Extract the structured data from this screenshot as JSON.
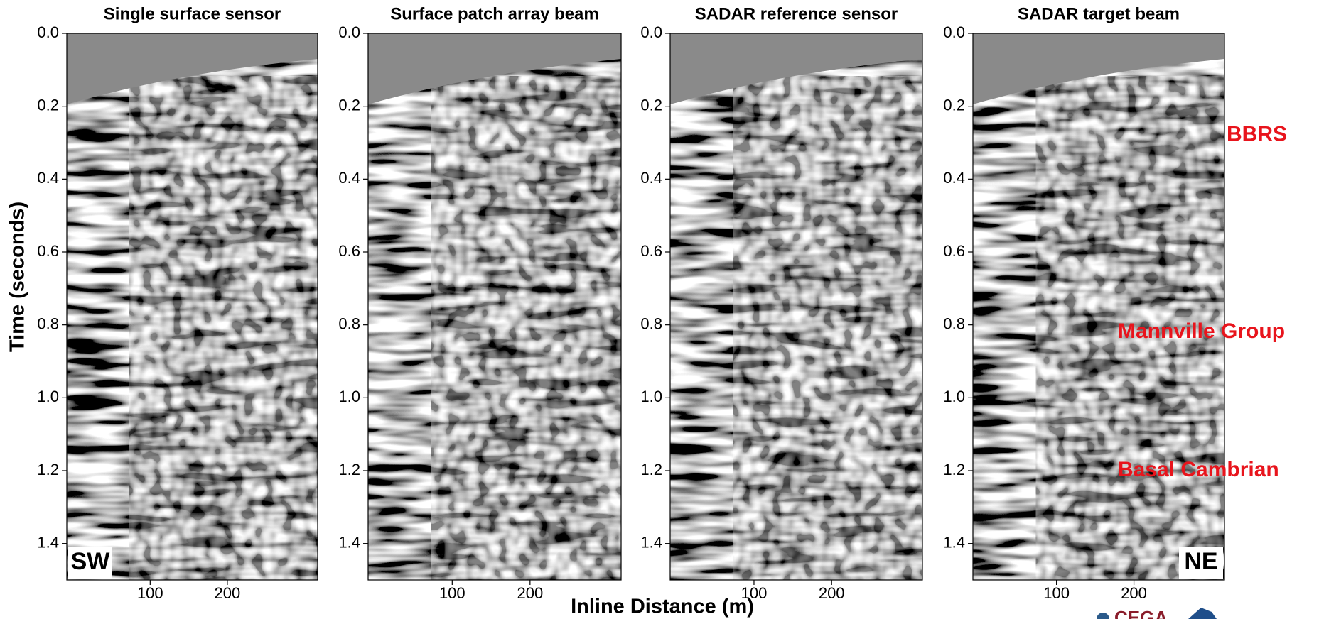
{
  "figure": {
    "ylabel": "Time (seconds)",
    "xlabel": "Inline Distance (m)"
  },
  "annotations": [
    {
      "text": "BBRS",
      "panel": 3,
      "y": 0.28
    },
    {
      "text": "Mannville Group",
      "panel": 3,
      "y": 0.82
    },
    {
      "text": "Basal Cambrian",
      "panel": 3,
      "y": 1.2
    }
  ],
  "corner_labels": [
    {
      "text": "SW",
      "panel": 0,
      "corner": "bottom-left"
    },
    {
      "text": "NE",
      "panel": 3,
      "corner": "bottom-right"
    }
  ],
  "logo": "CEGA",
  "chart_data": [
    {
      "type": "seismic",
      "title": "Single surface sensor",
      "xlim": [
        -8,
        317
      ],
      "xticks": [
        100,
        200
      ],
      "ylim": [
        0,
        1.5
      ],
      "y_inverted": true,
      "yticks": [
        {
          "value": 0,
          "label": "0.0"
        },
        0.2,
        0.4,
        0.6,
        0.8,
        {
          "value": 1,
          "label": "1.0"
        },
        1.2,
        1.4
      ]
    },
    {
      "type": "seismic",
      "title": "Surface patch array beam",
      "xlim": [
        -8,
        317
      ],
      "xticks": [
        100,
        200
      ],
      "ylim": [
        0,
        1.5
      ],
      "y_inverted": true,
      "yticks": [
        {
          "value": 0,
          "label": "0.0"
        },
        0.2,
        0.4,
        0.6,
        0.8,
        {
          "value": 1,
          "label": "1.0"
        },
        1.2,
        1.4
      ]
    },
    {
      "type": "seismic",
      "title": "SADAR reference sensor",
      "xlim": [
        -8,
        317
      ],
      "xticks": [
        100,
        200
      ],
      "ylim": [
        0,
        1.5
      ],
      "y_inverted": true,
      "yticks": [
        {
          "value": 0,
          "label": "0.0"
        },
        0.2,
        0.4,
        0.6,
        0.8,
        {
          "value": 1,
          "label": "1.0"
        },
        1.2,
        1.4
      ]
    },
    {
      "type": "seismic",
      "title": "SADAR target beam",
      "xlim": [
        -8,
        317
      ],
      "xticks": [
        100,
        200
      ],
      "ylim": [
        0,
        1.5
      ],
      "y_inverted": true,
      "yticks": [
        {
          "value": 0,
          "label": "0.0"
        },
        0.2,
        0.4,
        0.6,
        0.8,
        {
          "value": 1,
          "label": "1.0"
        },
        1.2,
        1.4
      ]
    }
  ]
}
